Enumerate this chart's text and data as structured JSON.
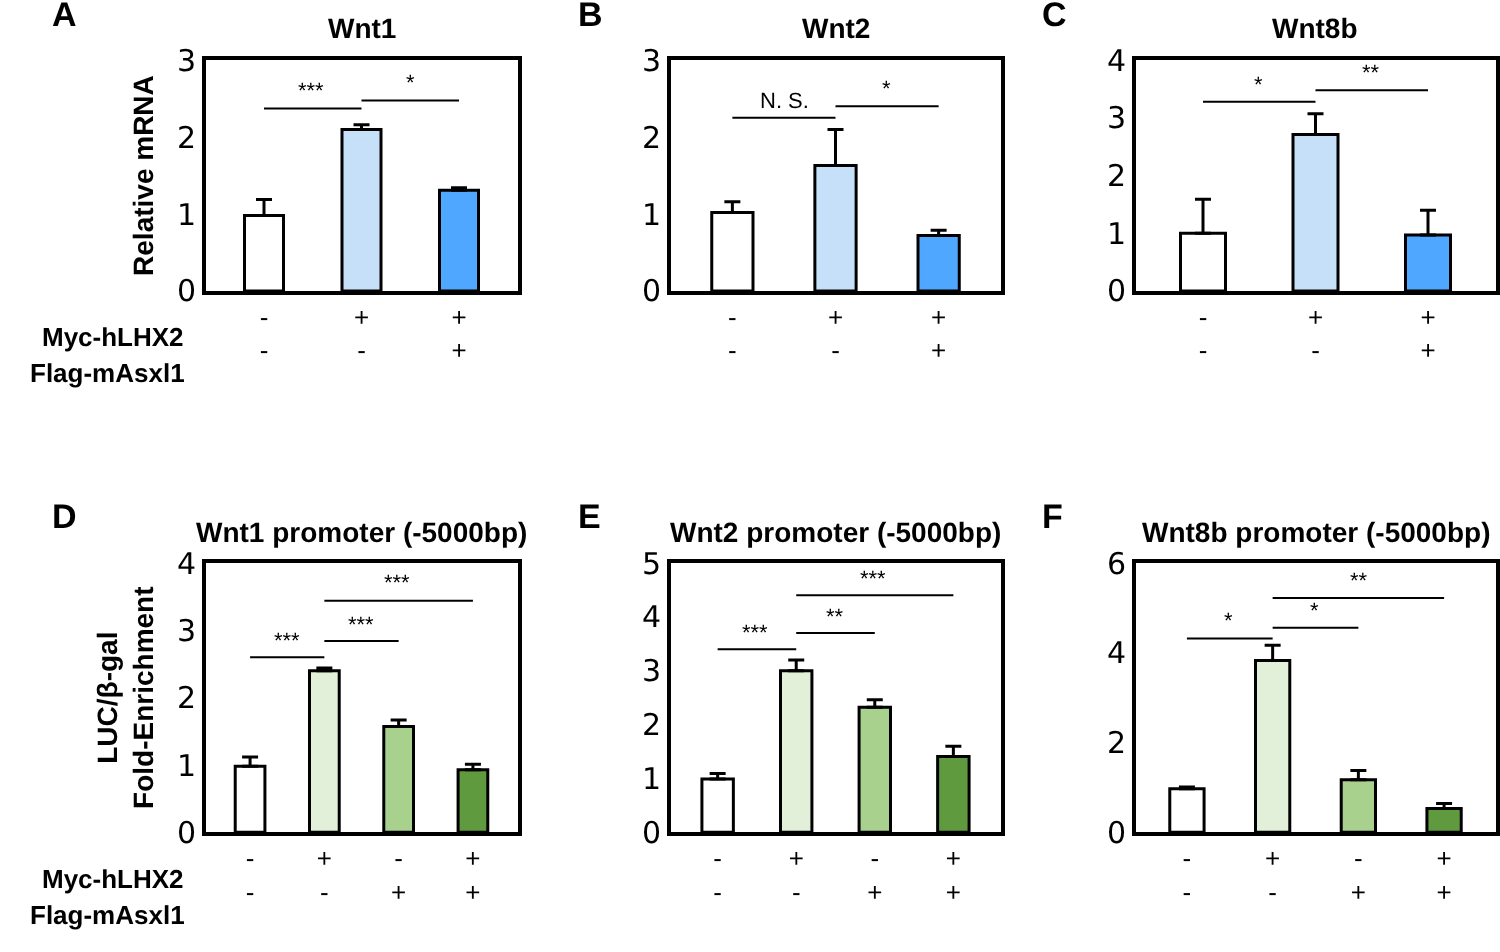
{
  "chart_data": [
    {
      "type": "bar",
      "title": "Wnt1",
      "ylabel": "Relative mRNA",
      "categories": [
        "-\n-",
        "+\n-",
        "+\n+"
      ],
      "values": [
        0.98,
        2.1,
        1.31
      ],
      "colors": [
        "#ffffff",
        "#c6e0f9",
        "#4fa7ff"
      ],
      "errors": [
        [
          0.98,
          1.19
        ],
        [
          2.1,
          2.16
        ],
        [
          1.31,
          1.34
        ]
      ],
      "ylim": [
        0,
        3
      ],
      "yticks": [
        0,
        1,
        2,
        3
      ],
      "annotations": [
        "A",
        "Myc-hLHX2",
        "Flag-mAsxl1",
        "***",
        "*"
      ]
    },
    {
      "type": "bar",
      "title": "Wnt2",
      "categories": [
        "-\n-",
        "+\n-",
        "+\n+"
      ],
      "values": [
        1.02,
        1.63,
        0.72
      ],
      "colors": [
        "#ffffff",
        "#c6e0f9",
        "#4fa7ff"
      ],
      "errors": [
        [
          1.02,
          1.16
        ],
        [
          1.63,
          2.1
        ],
        [
          0.72,
          0.79
        ]
      ],
      "ylim": [
        0,
        3
      ],
      "yticks": [
        0,
        1,
        2,
        3
      ],
      "annotations": [
        "B",
        "N. S.",
        "*"
      ]
    },
    {
      "type": "bar",
      "title": "Wnt8b",
      "categories": [
        "-\n-",
        "+\n-",
        "+\n+"
      ],
      "values": [
        1.0,
        2.71,
        0.97
      ],
      "colors": [
        "#ffffff",
        "#c6e0f9",
        "#4fa7ff"
      ],
      "errors": [
        [
          1.0,
          1.59
        ],
        [
          2.71,
          3.07
        ],
        [
          0.97,
          1.4
        ]
      ],
      "ylim": [
        0,
        4
      ],
      "yticks": [
        0,
        1,
        2,
        3,
        4
      ],
      "annotations": [
        "C",
        "*",
        "**"
      ]
    },
    {
      "type": "bar",
      "title": "Wnt1 promoter (-5000bp)",
      "ylabel": "LUC/β-gal\nFold-Enrichment",
      "categories": [
        "-\n-",
        "+\n-",
        "-\n+",
        "+\n+"
      ],
      "values": [
        0.98,
        2.4,
        1.57,
        0.93
      ],
      "colors": [
        "#ffffff",
        "#e2efd9",
        "#a9d18e",
        "#5f9b3e"
      ],
      "errors": [
        [
          0.98,
          1.12
        ],
        [
          2.4,
          2.44
        ],
        [
          1.57,
          1.67
        ],
        [
          0.93,
          1.01
        ]
      ],
      "ylim": [
        0,
        4
      ],
      "yticks": [
        0,
        1,
        2,
        3,
        4
      ],
      "annotations": [
        "D",
        "Myc-hLHX2",
        "Flag-mAsxl1",
        "***",
        "***",
        "***"
      ]
    },
    {
      "type": "bar",
      "title": "Wnt2 promoter (-5000bp)",
      "categories": [
        "-\n-",
        "+\n-",
        "-\n+",
        "+\n+"
      ],
      "values": [
        0.99,
        3.0,
        2.32,
        1.41
      ],
      "colors": [
        "#ffffff",
        "#e2efd9",
        "#a9d18e",
        "#5f9b3e"
      ],
      "errors": [
        [
          0.99,
          1.09
        ],
        [
          3.0,
          3.2
        ],
        [
          2.32,
          2.46
        ],
        [
          1.41,
          1.6
        ]
      ],
      "ylim": [
        0,
        5
      ],
      "yticks": [
        0,
        1,
        2,
        3,
        4,
        5
      ],
      "annotations": [
        "E",
        "***",
        "**",
        "***"
      ]
    },
    {
      "type": "bar",
      "title": "Wnt8b promoter (-5000bp)",
      "categories": [
        "-\n-",
        "+\n-",
        "-\n+",
        "+\n+"
      ],
      "values": [
        0.97,
        3.83,
        1.17,
        0.53
      ],
      "colors": [
        "#ffffff",
        "#e2efd9",
        "#a9d18e",
        "#5f9b3e"
      ],
      "errors": [
        [
          0.97,
          1.01
        ],
        [
          3.83,
          4.17
        ],
        [
          1.17,
          1.38
        ],
        [
          0.53,
          0.64
        ]
      ],
      "ylim": [
        0,
        6
      ],
      "yticks": [
        0,
        2,
        4,
        6
      ],
      "annotations": [
        "F",
        "*",
        "*",
        "**"
      ]
    }
  ]
}
